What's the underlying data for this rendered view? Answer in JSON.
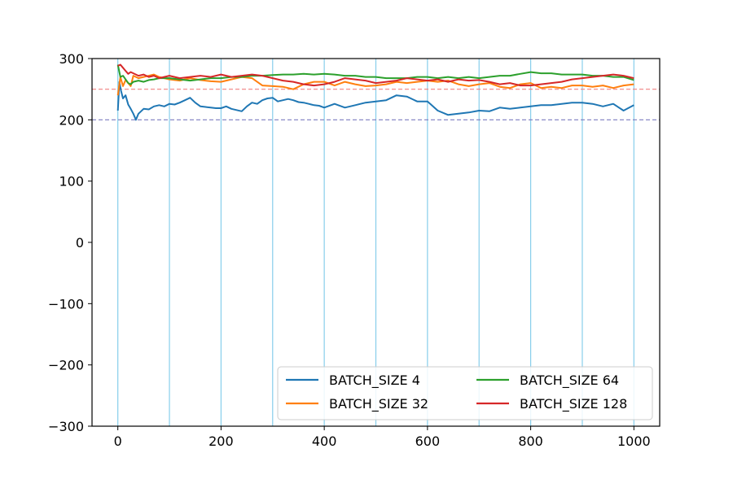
{
  "chart_data": {
    "type": "line",
    "title": "",
    "xlabel": "",
    "ylabel": "",
    "xlim": [
      -50,
      1050
    ],
    "ylim": [
      -300,
      300
    ],
    "x_ticks": [
      0,
      200,
      400,
      600,
      800,
      1000
    ],
    "y_ticks": [
      -300,
      -200,
      -100,
      0,
      100,
      200,
      300
    ],
    "x_tick_labels": [
      "0",
      "200",
      "400",
      "600",
      "800",
      "1000"
    ],
    "y_tick_labels": [
      "−300",
      "−200",
      "−100",
      "0",
      "100",
      "200",
      "300"
    ],
    "grid": false,
    "legend_position": "lower-right",
    "legend_columns": 2,
    "vertical_reference_lines": {
      "x": [
        0,
        100,
        200,
        300,
        400,
        500,
        600,
        700,
        800,
        900,
        1000
      ],
      "color": "#87ceeb"
    },
    "horizontal_reference_lines": [
      {
        "y": 250,
        "color": "#f08080",
        "style": "dashed"
      },
      {
        "y": 200,
        "color": "#7b7bc0",
        "style": "dashed"
      }
    ],
    "series": [
      {
        "name": "BATCH_SIZE 4",
        "color": "#1f77b4",
        "x": [
          0,
          3,
          6,
          10,
          15,
          20,
          25,
          30,
          35,
          40,
          50,
          60,
          70,
          80,
          90,
          100,
          110,
          120,
          130,
          140,
          150,
          160,
          170,
          180,
          190,
          200,
          210,
          220,
          230,
          240,
          250,
          260,
          270,
          280,
          290,
          300,
          310,
          320,
          330,
          340,
          350,
          360,
          370,
          380,
          390,
          400,
          420,
          440,
          460,
          480,
          500,
          520,
          540,
          560,
          580,
          600,
          620,
          640,
          660,
          680,
          700,
          720,
          740,
          760,
          780,
          800,
          820,
          840,
          860,
          880,
          900,
          920,
          940,
          960,
          980,
          1000
        ],
        "y": [
          215,
          262,
          248,
          235,
          240,
          225,
          218,
          210,
          200,
          210,
          218,
          217,
          222,
          224,
          222,
          226,
          225,
          228,
          232,
          236,
          228,
          222,
          221,
          220,
          219,
          219,
          222,
          218,
          216,
          214,
          222,
          228,
          226,
          232,
          235,
          236,
          230,
          232,
          234,
          232,
          229,
          228,
          226,
          224,
          223,
          220,
          226,
          220,
          224,
          228,
          230,
          232,
          240,
          238,
          230,
          230,
          215,
          208,
          210,
          212,
          215,
          214,
          220,
          218,
          220,
          222,
          224,
          224,
          226,
          228,
          228,
          226,
          222,
          226,
          215,
          224
        ]
      },
      {
        "name": "BATCH_SIZE 32",
        "color": "#ff7f0e",
        "x": [
          0,
          5,
          10,
          15,
          20,
          25,
          30,
          40,
          50,
          60,
          70,
          80,
          90,
          100,
          120,
          140,
          160,
          180,
          200,
          220,
          240,
          260,
          280,
          300,
          320,
          340,
          360,
          380,
          400,
          420,
          440,
          460,
          480,
          500,
          520,
          540,
          560,
          580,
          600,
          620,
          640,
          660,
          680,
          700,
          720,
          740,
          760,
          780,
          800,
          820,
          840,
          860,
          880,
          900,
          920,
          940,
          960,
          980,
          1000
        ],
        "y": [
          240,
          270,
          255,
          265,
          260,
          255,
          272,
          268,
          270,
          272,
          274,
          270,
          268,
          266,
          264,
          268,
          265,
          263,
          262,
          266,
          270,
          268,
          256,
          255,
          254,
          250,
          258,
          262,
          262,
          256,
          262,
          258,
          255,
          256,
          258,
          262,
          260,
          262,
          264,
          262,
          264,
          258,
          255,
          258,
          260,
          254,
          252,
          258,
          260,
          252,
          254,
          252,
          256,
          256,
          254,
          256,
          252,
          256,
          258
        ]
      },
      {
        "name": "BATCH_SIZE 64",
        "color": "#2ca02c",
        "x": [
          0,
          5,
          10,
          15,
          20,
          25,
          30,
          40,
          50,
          60,
          70,
          80,
          100,
          120,
          140,
          160,
          180,
          200,
          220,
          240,
          260,
          280,
          300,
          320,
          340,
          360,
          380,
          400,
          420,
          440,
          460,
          480,
          500,
          520,
          540,
          560,
          580,
          600,
          620,
          640,
          660,
          680,
          700,
          720,
          740,
          760,
          780,
          800,
          820,
          840,
          860,
          880,
          900,
          920,
          940,
          960,
          980,
          1000
        ],
        "y": [
          290,
          270,
          272,
          266,
          260,
          258,
          262,
          264,
          262,
          265,
          266,
          268,
          268,
          266,
          264,
          266,
          268,
          268,
          270,
          270,
          272,
          272,
          273,
          274,
          274,
          275,
          274,
          275,
          274,
          272,
          272,
          270,
          270,
          268,
          268,
          268,
          270,
          270,
          268,
          270,
          268,
          270,
          268,
          270,
          272,
          272,
          275,
          278,
          276,
          276,
          274,
          274,
          274,
          272,
          272,
          270,
          270,
          265
        ]
      },
      {
        "name": "BATCH_SIZE 128",
        "color": "#d62728",
        "x": [
          0,
          5,
          10,
          15,
          20,
          25,
          30,
          40,
          50,
          60,
          70,
          80,
          100,
          120,
          140,
          160,
          180,
          200,
          220,
          240,
          260,
          280,
          300,
          320,
          340,
          360,
          380,
          400,
          420,
          440,
          460,
          480,
          500,
          520,
          540,
          560,
          580,
          600,
          620,
          640,
          660,
          680,
          700,
          720,
          740,
          760,
          780,
          800,
          820,
          840,
          860,
          880,
          900,
          920,
          940,
          960,
          980,
          1000
        ],
        "y": [
          288,
          290,
          285,
          280,
          275,
          278,
          276,
          272,
          274,
          270,
          272,
          268,
          272,
          268,
          270,
          272,
          270,
          274,
          270,
          272,
          274,
          272,
          268,
          264,
          262,
          258,
          256,
          258,
          262,
          268,
          266,
          264,
          260,
          262,
          264,
          268,
          266,
          264,
          266,
          262,
          266,
          264,
          265,
          262,
          258,
          260,
          256,
          256,
          258,
          260,
          262,
          266,
          268,
          270,
          272,
          274,
          272,
          268
        ]
      }
    ]
  }
}
